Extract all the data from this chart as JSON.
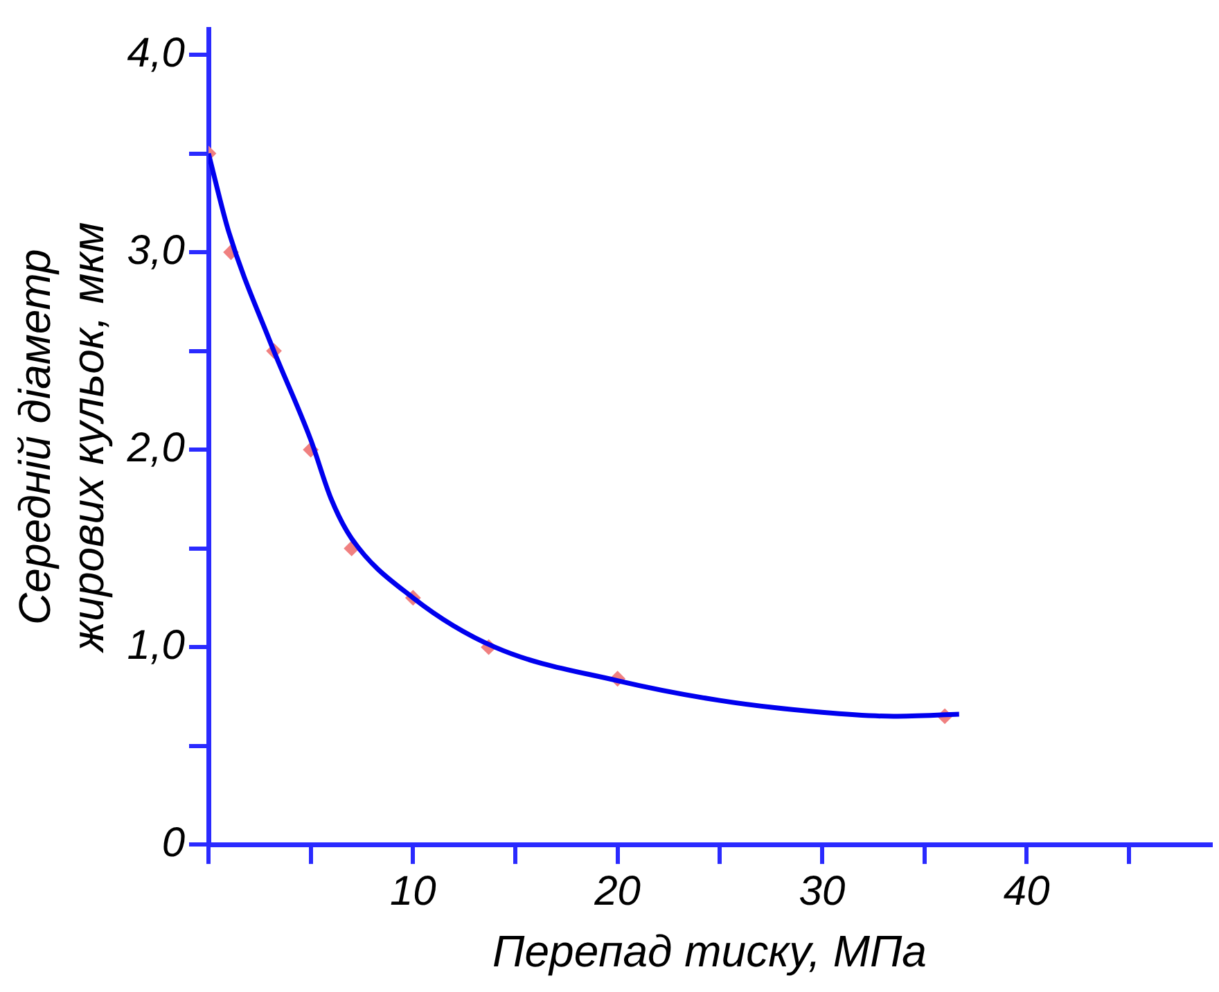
{
  "chart_data": {
    "type": "scatter",
    "xlabel": "Перепад тиску, МПа",
    "ylabel": "Середній діаметр\nжирових кульок, мкм",
    "xlim": [
      0,
      49
    ],
    "xticks": [
      {
        "value": 0,
        "label": null
      },
      {
        "value": 5,
        "label": null
      },
      10,
      {
        "value": 15,
        "label": null
      },
      20,
      {
        "value": 25,
        "label": null
      },
      30,
      {
        "value": 35,
        "label": null
      },
      40,
      {
        "value": 45,
        "label": null
      }
    ],
    "ylim": [
      0,
      4.13
    ],
    "yticks": [
      {
        "value": 0,
        "label": "0"
      },
      {
        "value": 0.5,
        "label": null
      },
      {
        "value": 1,
        "label": "1,0"
      },
      {
        "value": 1.5,
        "label": null
      },
      {
        "value": 2,
        "label": "2,0"
      },
      {
        "value": 2.5,
        "label": null
      },
      {
        "value": 3,
        "label": "3,0"
      },
      {
        "value": 3.5,
        "label": null
      },
      {
        "value": 4,
        "label": "4,0"
      }
    ],
    "grid": false,
    "legend": false,
    "series": [
      {
        "type": "line",
        "color": "#0000ee",
        "marker": "none",
        "line_style": "solid",
        "x": [
          0,
          1,
          3,
          5,
          6,
          7,
          10,
          14,
          20,
          25,
          30,
          33.5,
          36.7
        ],
        "values": [
          3.5,
          3.1,
          2.55,
          2.05,
          1.75,
          1.55,
          1.25,
          1.0,
          0.83,
          0.73,
          0.67,
          0.65,
          0.66
        ]
      },
      {
        "color": "#f08080",
        "marker": "diamond",
        "x": [
          0,
          1.1,
          3.2,
          5,
          7,
          10,
          13.7,
          20,
          36
        ],
        "values": [
          3.5,
          3.0,
          2.5,
          2.0,
          1.5,
          1.25,
          1.0,
          0.84,
          0.65
        ]
      }
    ]
  }
}
